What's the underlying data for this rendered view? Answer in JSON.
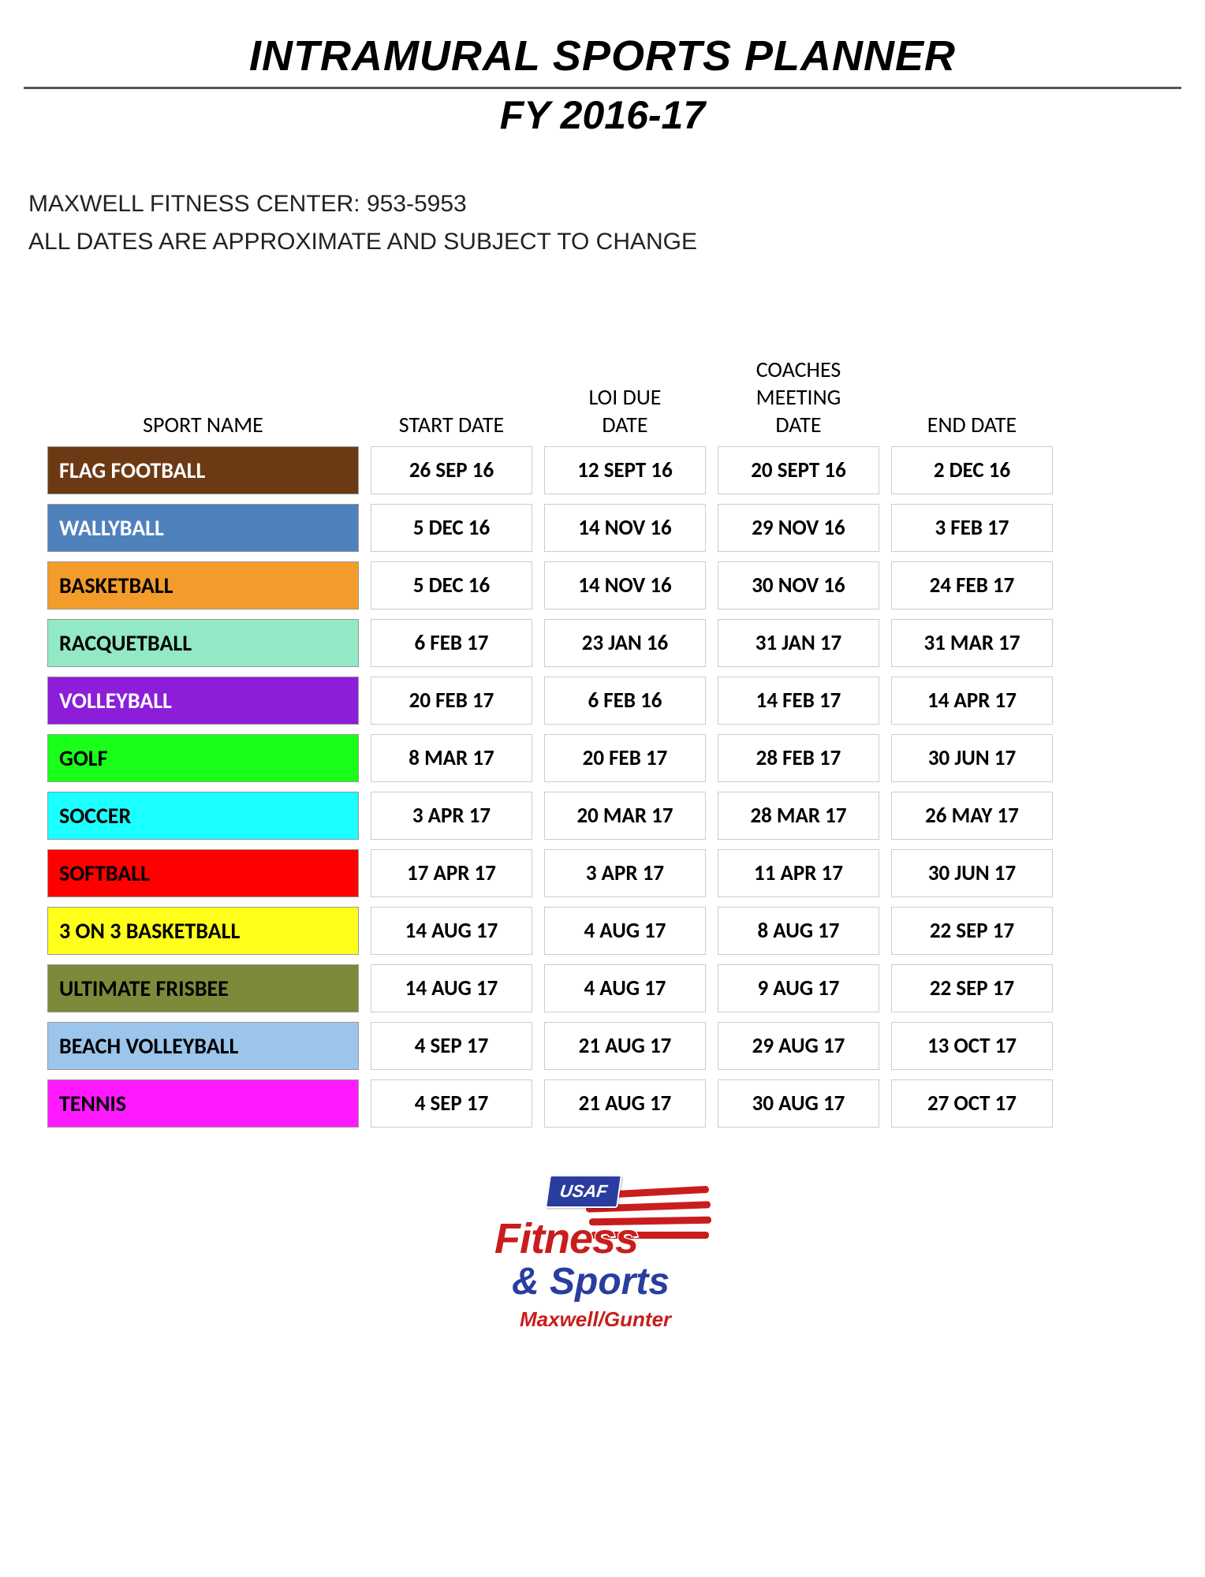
{
  "header": {
    "title": "INTRAMURAL SPORTS PLANNER",
    "subtitle": "FY 2016-17",
    "info_line1": "MAXWELL FITNESS CENTER: 953-5953",
    "info_line2": "ALL DATES ARE APPROXIMATE AND SUBJECT TO CHANGE"
  },
  "table": {
    "columns": [
      "SPORT NAME",
      "START DATE",
      "LOI  DUE\nDATE",
      "COACHES\nMEETING\nDATE",
      "END DATE"
    ],
    "rows": [
      {
        "sport": "FLAG FOOTBALL",
        "bg": "#6b3a14",
        "fg": "#ffffff",
        "start": "26 SEP 16",
        "loi": "12 SEPT 16",
        "coach": "20 SEPT 16",
        "end": "2 DEC 16"
      },
      {
        "sport": "WALLYBALL",
        "bg": "#4f81bd",
        "fg": "#ffffff",
        "start": "5 DEC 16",
        "loi": "14 NOV 16",
        "coach": "29 NOV 16",
        "end": "3 FEB 17"
      },
      {
        "sport": "BASKETBALL",
        "bg": "#f39c2c",
        "fg": "#000000",
        "start": "5 DEC 16",
        "loi": "14 NOV 16",
        "coach": "30 NOV 16",
        "end": "24 FEB 17"
      },
      {
        "sport": "RACQUETBALL",
        "bg": "#93e9c5",
        "fg": "#000000",
        "start": "6 FEB 17",
        "loi": "23  JAN 16",
        "coach": "31 JAN 17",
        "end": "31 MAR 17"
      },
      {
        "sport": "VOLLEYBALL",
        "bg": "#8c1dd9",
        "fg": "#ffffff",
        "start": "20 FEB 17",
        "loi": "6 FEB 16",
        "coach": "14 FEB 17",
        "end": "14 APR 17"
      },
      {
        "sport": "GOLF",
        "bg": "#1aff1a",
        "fg": "#000000",
        "start": "8 MAR 17",
        "loi": "20 FEB 17",
        "coach": "28 FEB 17",
        "end": "30 JUN 17"
      },
      {
        "sport": "SOCCER",
        "bg": "#1affff",
        "fg": "#000000",
        "start": "3 APR 17",
        "loi": "20 MAR 17",
        "coach": "28 MAR 17",
        "end": "26 MAY 17"
      },
      {
        "sport": "SOFTBALL",
        "bg": "#ff0000",
        "fg": "#000000",
        "start": "17 APR 17",
        "loi": "3 APR 17",
        "coach": "11 APR 17",
        "end": "30 JUN 17"
      },
      {
        "sport": "3 ON 3 BASKETBALL",
        "bg": "#ffff1a",
        "fg": "#000000",
        "start": "14 AUG 17",
        "loi": "4 AUG 17",
        "coach": "8 AUG 17",
        "end": "22 SEP 17"
      },
      {
        "sport": "ULTIMATE FRISBEE",
        "bg": "#7c8a3a",
        "fg": "#000000",
        "start": "14 AUG 17",
        "loi": "4 AUG  17",
        "coach": "9 AUG 17",
        "end": "22 SEP 17"
      },
      {
        "sport": "BEACH VOLLEYBALL",
        "bg": "#9cc5eb",
        "fg": "#000000",
        "start": "4 SEP 17",
        "loi": "21 AUG 17",
        "coach": "29 AUG 17",
        "end": "13 OCT 17"
      },
      {
        "sport": "TENNIS",
        "bg": "#ff1aff",
        "fg": "#000000",
        "start": "4 SEP 17",
        "loi": "21 AUG 17",
        "coach": "30 AUG 17",
        "end": "27 OCT 17"
      }
    ]
  },
  "logo": {
    "usaf": "USAF",
    "fitness": "Fitness",
    "sports": "& Sports",
    "location": "Maxwell/Gunter",
    "stripe_color_red": "#c91d1d",
    "stripe_color_white": "#ffffff"
  }
}
